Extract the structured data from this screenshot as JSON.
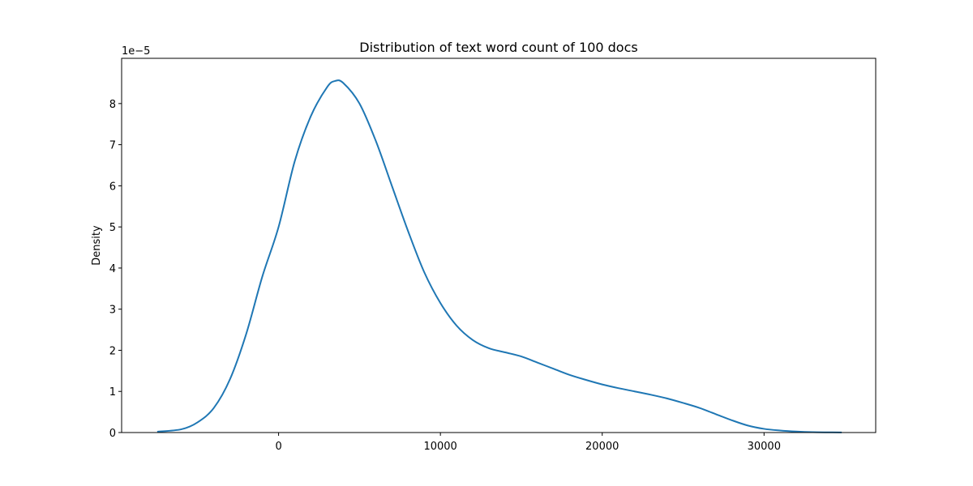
{
  "chart_data": {
    "type": "line",
    "title": "Distribution of text word count of 100 docs",
    "xlabel": "",
    "ylabel": "Density",
    "y_scale_note": "1e−5",
    "xlim": [
      -9700,
      36900
    ],
    "ylim": [
      0,
      9.1
    ],
    "xticks": [
      0,
      10000,
      20000,
      30000
    ],
    "xtick_labels": [
      "0",
      "10000",
      "20000",
      "30000"
    ],
    "yticks": [
      0,
      1,
      2,
      3,
      4,
      5,
      6,
      7,
      8
    ],
    "ytick_labels": [
      "0",
      "1",
      "2",
      "3",
      "4",
      "5",
      "6",
      "7",
      "8"
    ],
    "grid": false,
    "series": [
      {
        "color": "#1f77b4",
        "x": [
          -7500,
          -6000,
          -5000,
          -4000,
          -3000,
          -2000,
          -1000,
          0,
          1000,
          2000,
          3000,
          3500,
          4000,
          5000,
          6000,
          7000,
          8000,
          9000,
          10000,
          11000,
          12000,
          13000,
          14000,
          15000,
          16000,
          17000,
          18000,
          19000,
          20000,
          21000,
          22000,
          23000,
          24000,
          25000,
          26000,
          27000,
          28000,
          29000,
          30000,
          31000,
          32000,
          33000,
          34000,
          34800
        ],
        "y": [
          0.02,
          0.08,
          0.25,
          0.6,
          1.3,
          2.4,
          3.8,
          5.0,
          6.6,
          7.7,
          8.4,
          8.55,
          8.5,
          8.0,
          7.1,
          6.0,
          4.9,
          3.9,
          3.15,
          2.6,
          2.25,
          2.05,
          1.95,
          1.85,
          1.7,
          1.55,
          1.4,
          1.28,
          1.17,
          1.08,
          1.0,
          0.92,
          0.83,
          0.72,
          0.6,
          0.45,
          0.3,
          0.17,
          0.09,
          0.05,
          0.025,
          0.01,
          0.005,
          0.002
        ]
      }
    ]
  }
}
